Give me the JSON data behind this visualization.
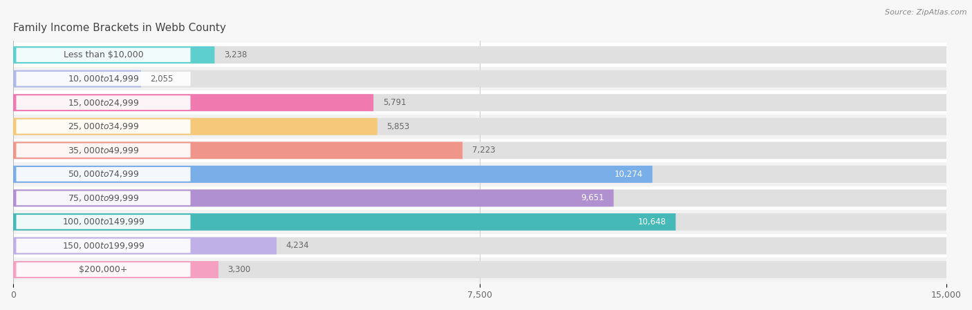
{
  "title": "Family Income Brackets in Webb County",
  "source": "Source: ZipAtlas.com",
  "categories": [
    "Less than $10,000",
    "$10,000 to $14,999",
    "$15,000 to $24,999",
    "$25,000 to $34,999",
    "$35,000 to $49,999",
    "$50,000 to $74,999",
    "$75,000 to $99,999",
    "$100,000 to $149,999",
    "$150,000 to $199,999",
    "$200,000+"
  ],
  "values": [
    3238,
    2055,
    5791,
    5853,
    7223,
    10274,
    9651,
    10648,
    4234,
    3300
  ],
  "bar_colors": [
    "#5ecfcf",
    "#b0b8e8",
    "#f07ab0",
    "#f5c87a",
    "#f0958a",
    "#7aaee8",
    "#b090d0",
    "#45b8b8",
    "#c0b0e8",
    "#f5a0c0"
  ],
  "xlim": [
    0,
    15000
  ],
  "xticks": [
    0,
    7500,
    15000
  ],
  "xtick_labels": [
    "0",
    "7,500",
    "15,000"
  ],
  "bg_color": "#f7f7f7",
  "row_colors": [
    "#ffffff",
    "#f2f2f2"
  ],
  "title_fontsize": 11,
  "label_fontsize": 9,
  "value_fontsize": 8.5,
  "inside_value_threshold": 8000
}
